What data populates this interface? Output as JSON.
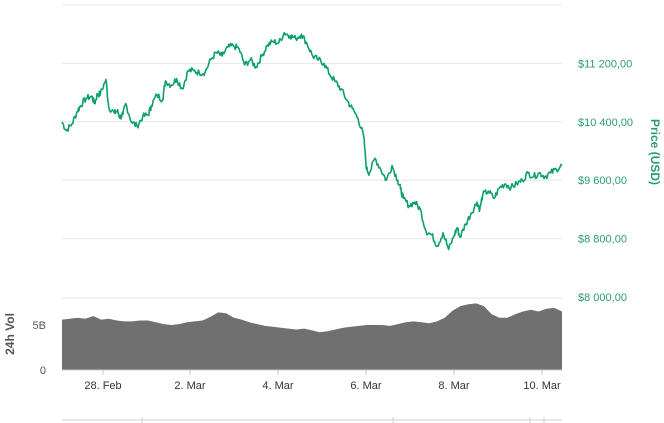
{
  "chart_data": [
    {
      "type": "line",
      "title": "",
      "ylabel": "Price (USD)",
      "xlabel": "",
      "line_color": "#0e9f6e",
      "x_ticks": [
        "28. Feb",
        "2. Mar",
        "4. Mar",
        "6. Mar",
        "8. Mar",
        "10. Mar"
      ],
      "y_ticks": [
        {
          "value": 8000,
          "label": "$8 000,00"
        },
        {
          "value": 8800,
          "label": "$8 800,00"
        },
        {
          "value": 9600,
          "label": "$9 600,00"
        },
        {
          "value": 10400,
          "label": "$10 400,00"
        },
        {
          "value": 11200,
          "label": "$11 200,00"
        }
      ],
      "ylim": [
        8000,
        12000
      ],
      "xlim": [
        27.0,
        10.6
      ],
      "grid": true,
      "x": [
        26.95,
        27.1,
        27.3,
        27.5,
        27.6,
        27.8,
        28.0,
        28.1,
        28.2,
        28.3,
        28.5,
        28.6,
        28.8,
        28.9,
        29.0,
        29.1,
        29.2,
        29.4,
        29.6,
        29.8,
        30.0,
        30.1,
        30.3,
        30.5,
        30.6,
        30.8,
        31.0,
        31.2,
        31.4,
        31.6,
        31.8,
        32.0,
        32.2,
        32.4,
        32.6,
        32.8,
        33.0,
        33.2,
        33.4,
        33.6,
        33.8,
        34.0,
        34.2,
        34.4,
        34.6,
        34.8,
        35.0,
        35.2,
        35.4,
        35.6,
        35.8,
        36.0,
        36.2,
        36.4,
        36.6,
        36.8,
        37.0,
        37.2,
        37.4,
        37.6,
        37.7,
        37.8,
        38.0,
        38.2,
        38.4,
        38.6,
        38.8,
        38.9,
        39.0,
        39.2,
        39.4,
        39.6,
        39.8,
        40.0,
        40.2,
        40.4,
        40.6,
        40.8,
        40.9,
        41.0,
        41.2,
        41.4,
        41.6,
        41.7,
        41.8,
        42.0,
        42.2,
        42.4,
        42.6,
        42.8,
        43.0,
        43.2,
        43.4,
        43.6,
        43.8,
        44.0,
        44.2,
        44.4,
        44.6
      ],
      "x_note": "",
      "values": [
        10400,
        10280,
        10370,
        10550,
        10620,
        10720,
        10750,
        10650,
        10780,
        10780,
        10980,
        10600,
        10520,
        10550,
        10460,
        10500,
        10650,
        10400,
        10340,
        10470,
        10500,
        10620,
        10770,
        10700,
        10960,
        10900,
        10990,
        10850,
        11100,
        11100,
        11070,
        11080,
        11250,
        11350,
        11300,
        11420,
        11440,
        11400,
        11180,
        11250,
        11150,
        11300,
        11450,
        11500,
        11480,
        11620,
        11580,
        11540,
        11600,
        11470,
        11300,
        11250,
        11200,
        11050,
        10950,
        10850,
        10700,
        10580,
        10450,
        10200,
        9750,
        9700,
        9900,
        9750,
        9600,
        9800,
        9600,
        9480,
        9350,
        9250,
        9300,
        9200,
        8900,
        8850,
        8700,
        8880,
        8650,
        8850,
        8950,
        8820,
        9000,
        9150,
        9300,
        9200,
        9400,
        9450,
        9350,
        9500,
        9550,
        9500,
        9550,
        9600,
        9700,
        9650,
        9700,
        9650,
        9700,
        9750,
        9800
      ]
    },
    {
      "type": "area",
      "ylabel": "24h Vol",
      "y_ticks": [
        {
          "value": 0,
          "label": "0"
        },
        {
          "value": 5,
          "label": "5B"
        }
      ],
      "ylim": [
        0,
        8
      ],
      "fill_color": "#707070",
      "values": [
        5.6,
        5.7,
        5.8,
        5.7,
        6.0,
        5.6,
        5.7,
        5.5,
        5.4,
        5.4,
        5.5,
        5.5,
        5.3,
        5.1,
        5.0,
        5.1,
        5.3,
        5.4,
        5.5,
        5.9,
        6.4,
        6.3,
        5.8,
        5.6,
        5.3,
        5.1,
        4.9,
        4.8,
        4.7,
        4.6,
        4.5,
        4.6,
        4.4,
        4.2,
        4.3,
        4.5,
        4.7,
        4.8,
        4.9,
        5.0,
        5.0,
        5.0,
        4.9,
        5.1,
        5.3,
        5.4,
        5.3,
        5.2,
        5.4,
        5.8,
        6.6,
        7.1,
        7.3,
        7.4,
        7.1,
        6.2,
        5.8,
        5.8,
        6.2,
        6.5,
        6.7,
        6.5,
        6.8,
        6.9,
        6.5
      ]
    }
  ]
}
